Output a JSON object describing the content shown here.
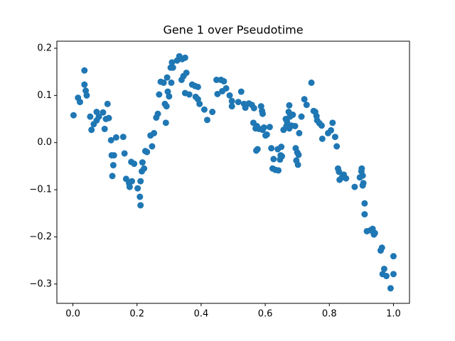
{
  "chart_data": {
    "type": "scatter",
    "title": "Gene 1 over Pseudotime",
    "color": "#1f77b4",
    "x": [
      0.002,
      0.016,
      0.022,
      0.036,
      0.036,
      0.04,
      0.043,
      0.054,
      0.058,
      0.065,
      0.074,
      0.074,
      0.081,
      0.094,
      0.099,
      0.103,
      0.108,
      0.112,
      0.119,
      0.121,
      0.123,
      0.126,
      0.128,
      0.135,
      0.157,
      0.161,
      0.166,
      0.175,
      0.177,
      0.182,
      0.184,
      0.191,
      0.202,
      0.209,
      0.211,
      0.211,
      0.215,
      0.217,
      0.222,
      0.226,
      0.231,
      0.242,
      0.247,
      0.253,
      0.26,
      0.265,
      0.269,
      0.274,
      0.283,
      0.287,
      0.29,
      0.292,
      0.294,
      0.296,
      0.3,
      0.305,
      0.307,
      0.309,
      0.312,
      0.325,
      0.332,
      0.339,
      0.341,
      0.345,
      0.35,
      0.35,
      0.354,
      0.363,
      0.372,
      0.381,
      0.383,
      0.39,
      0.39,
      0.395,
      0.41,
      0.419,
      0.435,
      0.448,
      0.451,
      0.462,
      0.466,
      0.471,
      0.478,
      0.489,
      0.496,
      0.496,
      0.516,
      0.525,
      0.534,
      0.538,
      0.549,
      0.558,
      0.563,
      0.565,
      0.57,
      0.572,
      0.574,
      0.576,
      0.581,
      0.587,
      0.59,
      0.592,
      0.592,
      0.596,
      0.601,
      0.605,
      0.614,
      0.619,
      0.623,
      0.626,
      0.632,
      0.639,
      0.641,
      0.646,
      0.648,
      0.65,
      0.652,
      0.657,
      0.664,
      0.666,
      0.668,
      0.673,
      0.675,
      0.675,
      0.677,
      0.682,
      0.686,
      0.693,
      0.695,
      0.697,
      0.7,
      0.702,
      0.704,
      0.706,
      0.713,
      0.722,
      0.729,
      0.744,
      0.751,
      0.756,
      0.76,
      0.762,
      0.769,
      0.776,
      0.778,
      0.796,
      0.805,
      0.81,
      0.818,
      0.823,
      0.827,
      0.83,
      0.832,
      0.839,
      0.845,
      0.852,
      0.879,
      0.895,
      0.9,
      0.901,
      0.904,
      0.904,
      0.906,
      0.91,
      0.91,
      0.917,
      0.928,
      0.935,
      0.939,
      0.942,
      0.96,
      0.964,
      0.966,
      0.971,
      0.978,
      0.991,
      1.0,
      1.0
    ],
    "values": [
      0.058,
      0.095,
      0.086,
      0.153,
      0.123,
      0.11,
      0.1,
      0.055,
      0.027,
      0.039,
      0.065,
      0.047,
      0.055,
      0.064,
      0.029,
      0.05,
      0.082,
      0.052,
      0.005,
      -0.027,
      -0.071,
      -0.048,
      -0.027,
      0.011,
      0.012,
      -0.023,
      -0.077,
      -0.086,
      -0.094,
      -0.041,
      -0.082,
      -0.045,
      -0.097,
      -0.115,
      -0.133,
      -0.082,
      -0.061,
      -0.042,
      -0.055,
      -0.018,
      -0.02,
      0.015,
      -0.008,
      0.02,
      0.053,
      0.061,
      0.102,
      0.129,
      0.127,
      0.082,
      0.042,
      0.077,
      0.138,
      0.108,
      0.098,
      0.159,
      0.127,
      0.17,
      0.159,
      0.174,
      0.183,
      0.133,
      0.177,
      0.141,
      0.18,
      0.105,
      0.148,
      0.102,
      0.123,
      0.12,
      0.097,
      0.092,
      0.118,
      0.082,
      0.07,
      0.048,
      0.065,
      0.133,
      0.103,
      0.133,
      0.109,
      0.13,
      0.115,
      0.1,
      0.088,
      0.077,
      0.086,
      0.108,
      0.082,
      0.074,
      0.083,
      0.08,
      0.042,
      0.073,
      0.03,
      -0.017,
      0.035,
      -0.014,
      0.029,
      0.077,
      0.067,
      0.061,
      0.027,
      0.032,
      0.015,
      0.017,
      0.033,
      -0.012,
      -0.055,
      -0.035,
      -0.058,
      -0.014,
      -0.059,
      -0.036,
      -0.027,
      -0.009,
      -0.029,
      0.027,
      0.05,
      0.035,
      0.044,
      0.065,
      0.079,
      0.03,
      0.055,
      0.036,
      0.059,
      0.035,
      -0.012,
      -0.038,
      -0.021,
      -0.047,
      -0.026,
      0.02,
      0.055,
      0.092,
      0.08,
      0.127,
      0.067,
      0.065,
      0.056,
      0.047,
      0.041,
      0.036,
      0.008,
      0.02,
      0.026,
      0.042,
      0.012,
      -0.008,
      -0.055,
      -0.062,
      -0.079,
      -0.074,
      -0.068,
      -0.076,
      -0.094,
      -0.074,
      -0.061,
      -0.055,
      -0.07,
      -0.091,
      -0.086,
      -0.129,
      -0.152,
      -0.188,
      -0.186,
      -0.183,
      -0.195,
      -0.192,
      -0.229,
      -0.223,
      -0.279,
      -0.268,
      -0.283,
      -0.309,
      -0.241,
      -0.279
    ],
    "xlim": [
      -0.05,
      1.05
    ],
    "ylim": [
      -0.341,
      0.215
    ],
    "xticks": [
      {
        "value": 0.0,
        "label": "0.0"
      },
      0.2,
      0.4,
      0.6,
      0.8,
      {
        "value": 1.0,
        "label": "1.0"
      }
    ],
    "yticks": [
      {
        "value": -0.3,
        "label": "−0.3"
      },
      {
        "value": -0.2,
        "label": "−0.2"
      },
      {
        "value": -0.1,
        "label": "−0.1"
      },
      {
        "value": 0.0,
        "label": "0.0"
      },
      0.1,
      0.2
    ]
  }
}
